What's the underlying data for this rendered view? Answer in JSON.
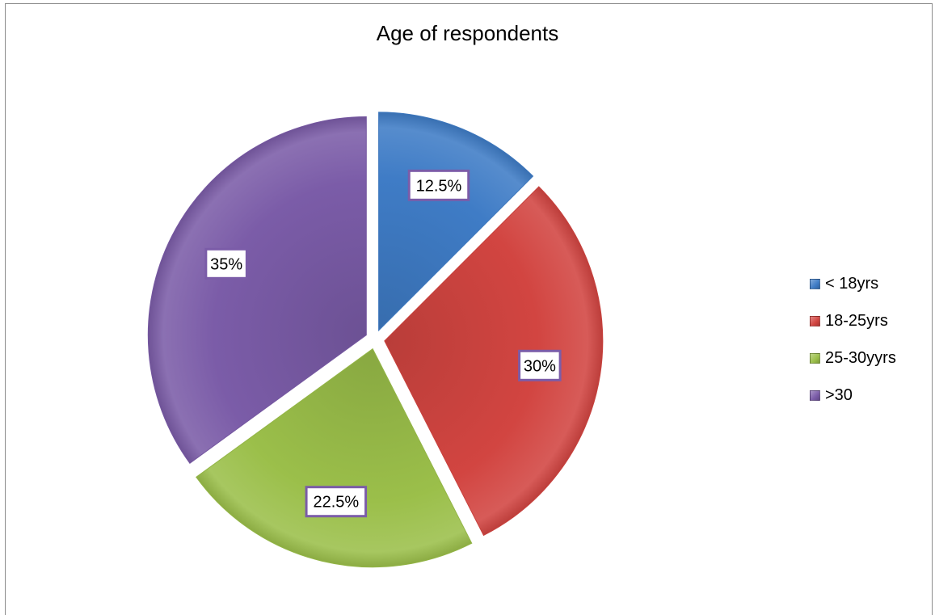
{
  "chart_data": {
    "type": "pie",
    "title": "Age of respondents",
    "categories": [
      "< 18yrs",
      "18-25yrs",
      "25-30yyrs",
      ">30"
    ],
    "values": [
      12.5,
      30,
      22.5,
      35
    ],
    "data_labels": [
      "12.5%",
      "30%",
      "22.5%",
      "35%"
    ],
    "colors": [
      "#3f7cc6",
      "#d24541",
      "#9bbf4a",
      "#7b5ca8"
    ],
    "legend_position": "right",
    "exploded": true
  }
}
